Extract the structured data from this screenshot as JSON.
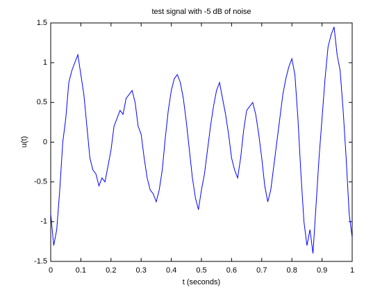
{
  "chart_data": {
    "type": "line",
    "title": "test signal with -5 dB of noise",
    "xlabel": "t (seconds)",
    "ylabel": "u(t)",
    "x": [
      0,
      0.01,
      0.02,
      0.03,
      0.04,
      0.05,
      0.06,
      0.07,
      0.08,
      0.09,
      0.1,
      0.11,
      0.12,
      0.13,
      0.14,
      0.15,
      0.16,
      0.17,
      0.18,
      0.19,
      0.2,
      0.21,
      0.22,
      0.23,
      0.24,
      0.25,
      0.26,
      0.27,
      0.28,
      0.29,
      0.3,
      0.31,
      0.32,
      0.33,
      0.34,
      0.35,
      0.36,
      0.37,
      0.38,
      0.39,
      0.4,
      0.41,
      0.42,
      0.43,
      0.44,
      0.45,
      0.46,
      0.47,
      0.48,
      0.49,
      0.5,
      0.51,
      0.52,
      0.53,
      0.54,
      0.55,
      0.56,
      0.57,
      0.58,
      0.59,
      0.6,
      0.61,
      0.62,
      0.63,
      0.64,
      0.65,
      0.66,
      0.67,
      0.68,
      0.69,
      0.7,
      0.71,
      0.72,
      0.73,
      0.74,
      0.75,
      0.76,
      0.77,
      0.78,
      0.79,
      0.8,
      0.81,
      0.82,
      0.83,
      0.84,
      0.85,
      0.86,
      0.87,
      0.88,
      0.89,
      0.9,
      0.91,
      0.92,
      0.93,
      0.94,
      0.95,
      0.96,
      0.97,
      0.98,
      0.99,
      1
    ],
    "series": [
      {
        "color": "#0000ff",
        "values": [
          -0.9,
          -1.3,
          -1.1,
          -0.6,
          0.0,
          0.3,
          0.75,
          0.9,
          1.0,
          1.1,
          0.85,
          0.6,
          0.2,
          -0.2,
          -0.35,
          -0.4,
          -0.55,
          -0.45,
          -0.5,
          -0.3,
          -0.1,
          0.2,
          0.3,
          0.4,
          0.35,
          0.55,
          0.6,
          0.65,
          0.5,
          0.2,
          0.1,
          -0.2,
          -0.45,
          -0.6,
          -0.65,
          -0.75,
          -0.6,
          -0.35,
          0.05,
          0.4,
          0.65,
          0.8,
          0.85,
          0.75,
          0.55,
          0.25,
          -0.1,
          -0.45,
          -0.7,
          -0.85,
          -0.6,
          -0.4,
          -0.1,
          0.2,
          0.45,
          0.65,
          0.75,
          0.55,
          0.35,
          0.1,
          -0.2,
          -0.35,
          -0.45,
          -0.2,
          0.15,
          0.4,
          0.45,
          0.5,
          0.35,
          0.1,
          -0.2,
          -0.55,
          -0.75,
          -0.6,
          -0.3,
          0.0,
          0.3,
          0.6,
          0.8,
          0.95,
          1.05,
          0.85,
          0.3,
          -0.4,
          -1.0,
          -1.3,
          -1.1,
          -1.4,
          -0.8,
          -0.2,
          0.3,
          0.8,
          1.2,
          1.35,
          1.45,
          1.1,
          0.9,
          0.4,
          -0.2,
          -0.9,
          -1.2
        ]
      }
    ],
    "xlim": [
      0,
      1
    ],
    "xticks": [
      0,
      0.1,
      0.2,
      0.3,
      0.4,
      0.5,
      0.6,
      0.7,
      0.8,
      0.9,
      1
    ],
    "ylim": [
      -1.5,
      1.5
    ],
    "yticks": [
      -1.5,
      -1,
      -0.5,
      0,
      0.5,
      1,
      1.5
    ],
    "grid": false
  }
}
